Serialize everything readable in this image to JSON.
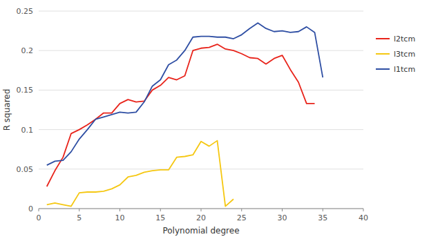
{
  "chart_data": {
    "type": "line",
    "xlabel": "Polynomial degree",
    "ylabel": "R squared",
    "xlim": [
      0,
      40
    ],
    "ylim": [
      0,
      0.25
    ],
    "xticks": [
      0,
      5,
      10,
      15,
      20,
      25,
      30,
      35,
      40
    ],
    "yticks": [
      0,
      0.05,
      0.1,
      0.15,
      0.2,
      0.25
    ],
    "grid": true,
    "legend": "right",
    "series": [
      {
        "name": "l2tcm",
        "color": "#e8231a",
        "x": [
          1,
          2,
          3,
          4,
          5,
          6,
          7,
          8,
          9,
          10,
          11,
          12,
          13,
          14,
          15,
          16,
          17,
          18,
          19,
          20,
          21,
          22,
          23,
          24,
          25,
          26,
          27,
          28,
          29,
          30,
          31,
          32,
          33,
          34
        ],
        "values": [
          0.028,
          0.048,
          0.065,
          0.095,
          0.1,
          0.106,
          0.113,
          0.121,
          0.121,
          0.133,
          0.138,
          0.135,
          0.136,
          0.15,
          0.156,
          0.166,
          0.163,
          0.168,
          0.2,
          0.203,
          0.204,
          0.208,
          0.202,
          0.2,
          0.196,
          0.191,
          0.19,
          0.183,
          0.19,
          0.194,
          0.176,
          0.16,
          0.133,
          0.133
        ]
      },
      {
        "name": "l3tcm",
        "color": "#f5c711",
        "x": [
          1,
          2,
          3,
          4,
          5,
          6,
          7,
          8,
          9,
          10,
          11,
          12,
          13,
          14,
          15,
          16,
          17,
          18,
          19,
          20,
          21,
          22,
          23,
          24
        ],
        "values": [
          0.005,
          0.007,
          0.005,
          0.003,
          0.02,
          0.021,
          0.021,
          0.022,
          0.025,
          0.03,
          0.04,
          0.042,
          0.046,
          0.048,
          0.049,
          0.049,
          0.065,
          0.066,
          0.068,
          0.085,
          0.079,
          0.086,
          0.003,
          0.012
        ]
      },
      {
        "name": "l1tcm",
        "color": "#2e4ea3",
        "x": [
          1,
          2,
          3,
          4,
          5,
          6,
          7,
          8,
          9,
          10,
          11,
          12,
          13,
          14,
          15,
          16,
          17,
          18,
          19,
          20,
          21,
          22,
          23,
          24,
          25,
          26,
          27,
          28,
          29,
          30,
          31,
          32,
          33,
          34,
          35
        ],
        "values": [
          0.055,
          0.06,
          0.061,
          0.072,
          0.088,
          0.1,
          0.113,
          0.116,
          0.119,
          0.122,
          0.121,
          0.122,
          0.135,
          0.155,
          0.163,
          0.182,
          0.188,
          0.2,
          0.217,
          0.218,
          0.218,
          0.217,
          0.217,
          0.215,
          0.22,
          0.228,
          0.235,
          0.228,
          0.224,
          0.225,
          0.223,
          0.224,
          0.23,
          0.223,
          0.166
        ]
      }
    ]
  }
}
